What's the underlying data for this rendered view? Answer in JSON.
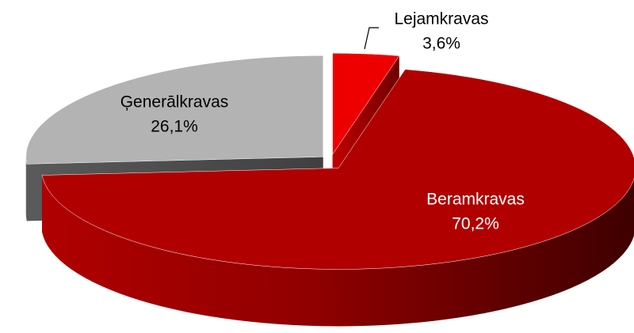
{
  "chart_data": {
    "type": "pie3d",
    "categories": [
      "Lejamkravas",
      "Beramkravas",
      "Ģenerālkravas"
    ],
    "values": [
      3.6,
      70.2,
      26.1
    ],
    "value_labels": [
      "3,6%",
      "70,2%",
      "26,1%"
    ],
    "colors": [
      "#ee0000",
      "#b00000",
      "#b3b3b3"
    ]
  }
}
